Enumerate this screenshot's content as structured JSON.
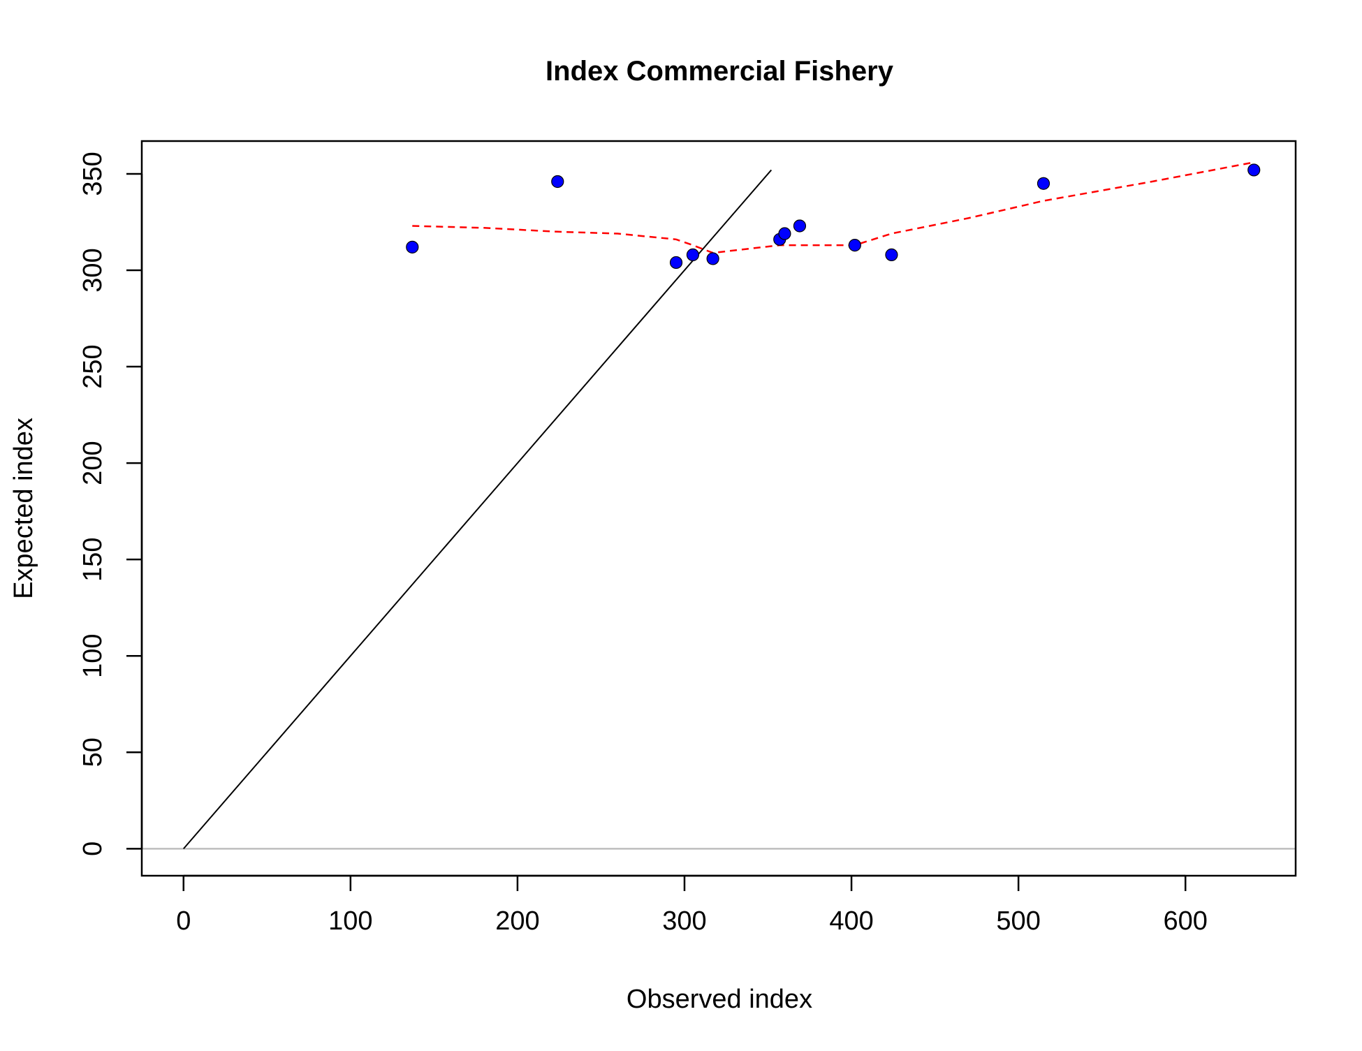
{
  "chart_data": {
    "type": "scatter",
    "title": "Index Commercial Fishery",
    "xlabel": "Observed index",
    "ylabel": "Expected index",
    "xlim": [
      -25,
      666
    ],
    "ylim": [
      -14,
      367
    ],
    "x_ticks": [
      0,
      100,
      200,
      300,
      400,
      500,
      600
    ],
    "y_ticks": [
      0,
      50,
      100,
      150,
      200,
      250,
      300,
      350
    ],
    "grid": false,
    "legend": "none",
    "points": {
      "color": "#0000ff",
      "edge_color": "#000000",
      "x": [
        137,
        224,
        295,
        305,
        317,
        357,
        360,
        369,
        402,
        424,
        515,
        641
      ],
      "y": [
        312,
        346,
        304,
        308,
        306,
        316,
        319,
        323,
        313,
        308,
        345,
        352
      ]
    },
    "identity_line": {
      "color": "#000000",
      "x": [
        0,
        352
      ],
      "y": [
        0,
        352
      ]
    },
    "zero_line": {
      "color": "#bebebe",
      "y": 0
    },
    "smoother": {
      "color": "#ff0000",
      "style": "dashed",
      "x": [
        137,
        180,
        224,
        260,
        295,
        305,
        317,
        357,
        360,
        369,
        402,
        424,
        470,
        515,
        580,
        641
      ],
      "y": [
        323,
        322,
        320,
        319,
        316,
        313,
        309,
        313,
        313,
        313,
        313,
        319,
        327,
        336,
        346,
        356
      ]
    }
  }
}
